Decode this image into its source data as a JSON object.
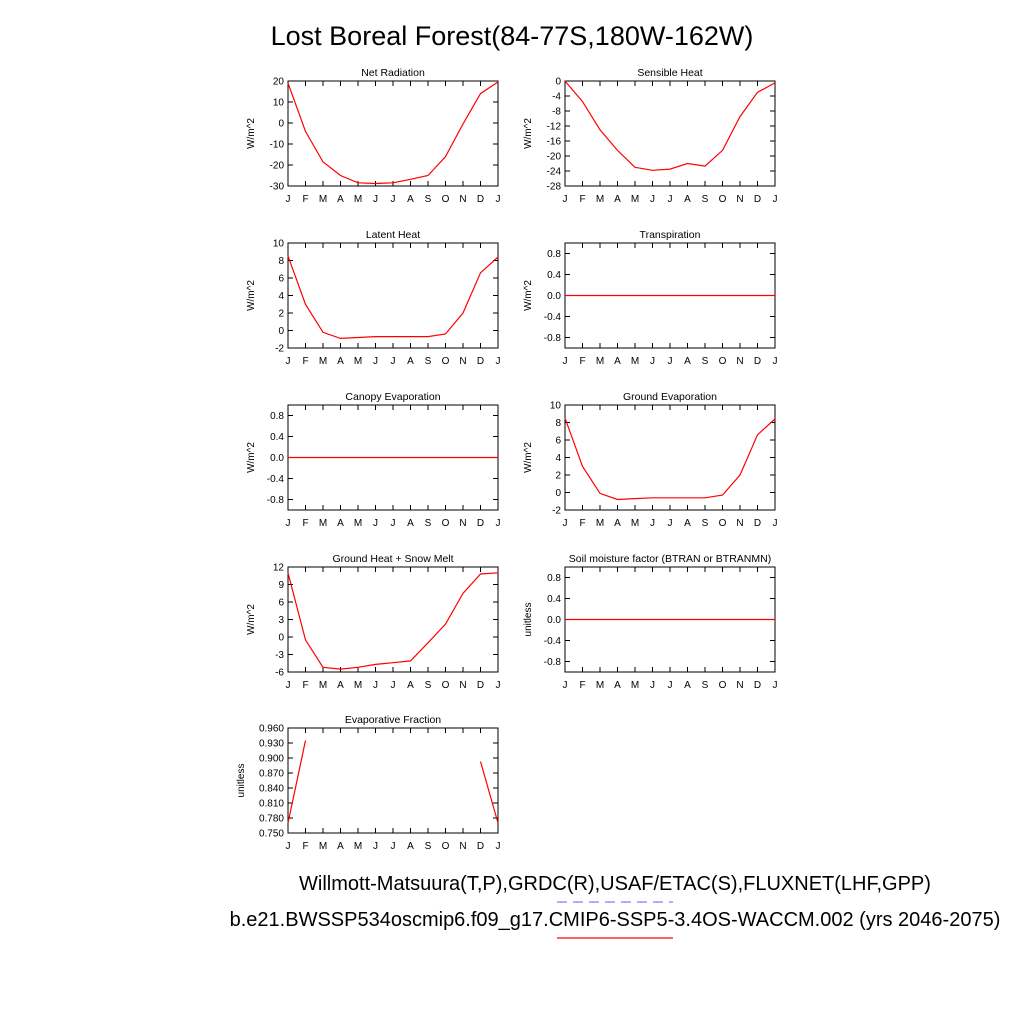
{
  "title": "Lost Boreal Forest(84-77S,180W-162W)",
  "months": [
    "J",
    "F",
    "M",
    "A",
    "M",
    "J",
    "J",
    "A",
    "S",
    "O",
    "N",
    "D",
    "J"
  ],
  "line_color": "#ff0000",
  "obs_color": "#7f7fff",
  "legend": {
    "obs_label": "Willmott-Matsuura(T,P),GRDC(R),USAF/ETAC(S),FLUXNET(LHF,GPP)",
    "model_label": "b.e21.BWSSP534oscmip6.f09_g17.CMIP6-SSP5-3.4OS-WACCM.002 (yrs 2046-2075)"
  },
  "chart_data": [
    {
      "type": "line",
      "title": "Net Radiation",
      "ylabel": "W/m^2",
      "ylim": [
        -30,
        20
      ],
      "yticks": [
        "20",
        "10",
        "0",
        "-10",
        "-20",
        "-30"
      ],
      "ytick_values": [
        20,
        10,
        0,
        -10,
        -20,
        -30
      ],
      "series": [
        {
          "values": [
            19,
            -4,
            -18.5,
            -25,
            -28.5,
            -28.8,
            -28.5,
            -26.8,
            -25,
            -16,
            -0.5,
            14,
            19.5
          ]
        }
      ]
    },
    {
      "type": "line",
      "title": "Sensible Heat",
      "ylabel": "W/m^2",
      "ylim": [
        -28,
        0
      ],
      "yticks": [
        "0",
        "-4",
        "-8",
        "-12",
        "-16",
        "-20",
        "-24",
        "-28"
      ],
      "ytick_values": [
        0,
        -4,
        -8,
        -12,
        -16,
        -20,
        -24,
        -28
      ],
      "series": [
        {
          "values": [
            0,
            -5.5,
            -13,
            -18.5,
            -23,
            -23.8,
            -23.5,
            -22,
            -22.7,
            -18.5,
            -9.5,
            -3,
            -0.5
          ]
        }
      ]
    },
    {
      "type": "line",
      "title": "Latent Heat",
      "ylabel": "W/m^2",
      "ylim": [
        -2,
        10
      ],
      "yticks": [
        "10",
        "8",
        "6",
        "4",
        "2",
        "0",
        "-2"
      ],
      "ytick_values": [
        10,
        8,
        6,
        4,
        2,
        0,
        -2
      ],
      "series": [
        {
          "values": [
            8.5,
            3,
            -0.2,
            -0.9,
            -0.8,
            -0.7,
            -0.7,
            -0.7,
            -0.7,
            -0.4,
            2,
            6.6,
            8.4
          ]
        }
      ]
    },
    {
      "type": "line",
      "title": "Transpiration",
      "ylabel": "W/m^2",
      "ylim": [
        -1,
        1
      ],
      "yticks": [
        "0.8",
        "0.4",
        "0.0",
        "-0.4",
        "-0.8"
      ],
      "ytick_values": [
        0.8,
        0.4,
        0.0,
        -0.4,
        -0.8
      ],
      "series": [
        {
          "values": [
            0,
            0,
            0,
            0,
            0,
            0,
            0,
            0,
            0,
            0,
            0,
            0,
            0
          ]
        }
      ]
    },
    {
      "type": "line",
      "title": "Canopy Evaporation",
      "ylabel": "W/m^2",
      "ylim": [
        -1,
        1
      ],
      "yticks": [
        "0.8",
        "0.4",
        "0.0",
        "-0.4",
        "-0.8"
      ],
      "ytick_values": [
        0.8,
        0.4,
        0.0,
        -0.4,
        -0.8
      ],
      "series": [
        {
          "values": [
            0,
            0,
            0,
            0,
            0,
            0,
            0,
            0,
            0,
            0,
            0,
            0,
            0
          ]
        }
      ]
    },
    {
      "type": "line",
      "title": "Ground Evaporation",
      "ylabel": "W/m^2",
      "ylim": [
        -2,
        10
      ],
      "yticks": [
        "10",
        "8",
        "6",
        "4",
        "2",
        "0",
        "-2"
      ],
      "ytick_values": [
        10,
        8,
        6,
        4,
        2,
        0,
        -2
      ],
      "series": [
        {
          "values": [
            8.5,
            3,
            -0.1,
            -0.8,
            -0.7,
            -0.6,
            -0.6,
            -0.6,
            -0.6,
            -0.3,
            2,
            6.6,
            8.4
          ]
        }
      ]
    },
    {
      "type": "line",
      "title": "Ground Heat + Snow Melt",
      "ylabel": "W/m^2",
      "ylim": [
        -6,
        12
      ],
      "yticks": [
        "12",
        "9",
        "6",
        "3",
        "0",
        "-3",
        "-6"
      ],
      "ytick_values": [
        12,
        9,
        6,
        3,
        0,
        -3,
        -6
      ],
      "series": [
        {
          "values": [
            11,
            -0.5,
            -5.2,
            -5.5,
            -5.2,
            -4.7,
            -4.4,
            -4.1,
            -1,
            2.2,
            7.5,
            10.8,
            11
          ]
        }
      ]
    },
    {
      "type": "line",
      "title": "Soil moisture factor (BTRAN or BTRANMN)",
      "ylabel": "unitless",
      "ylim": [
        -1,
        1
      ],
      "yticks": [
        "0.8",
        "0.4",
        "0.0",
        "-0.4",
        "-0.8"
      ],
      "ytick_values": [
        0.8,
        0.4,
        0.0,
        -0.4,
        -0.8
      ],
      "series": [
        {
          "values": [
            0,
            0,
            0,
            0,
            0,
            0,
            0,
            0,
            0,
            0,
            0,
            0,
            0
          ]
        }
      ]
    },
    {
      "type": "line",
      "title": "Evaporative Fraction",
      "ylabel": "unitless",
      "ylim": [
        0.75,
        0.96
      ],
      "yticks": [
        "0.960",
        "0.930",
        "0.900",
        "0.870",
        "0.840",
        "0.810",
        "0.780",
        "0.750"
      ],
      "ytick_values": [
        0.96,
        0.93,
        0.9,
        0.87,
        0.84,
        0.81,
        0.78,
        0.75
      ],
      "series": [
        {
          "values": [
            0.77,
            0.935,
            null,
            null,
            null,
            null,
            null,
            null,
            null,
            null,
            null,
            0.893,
            0.77
          ]
        }
      ]
    }
  ]
}
